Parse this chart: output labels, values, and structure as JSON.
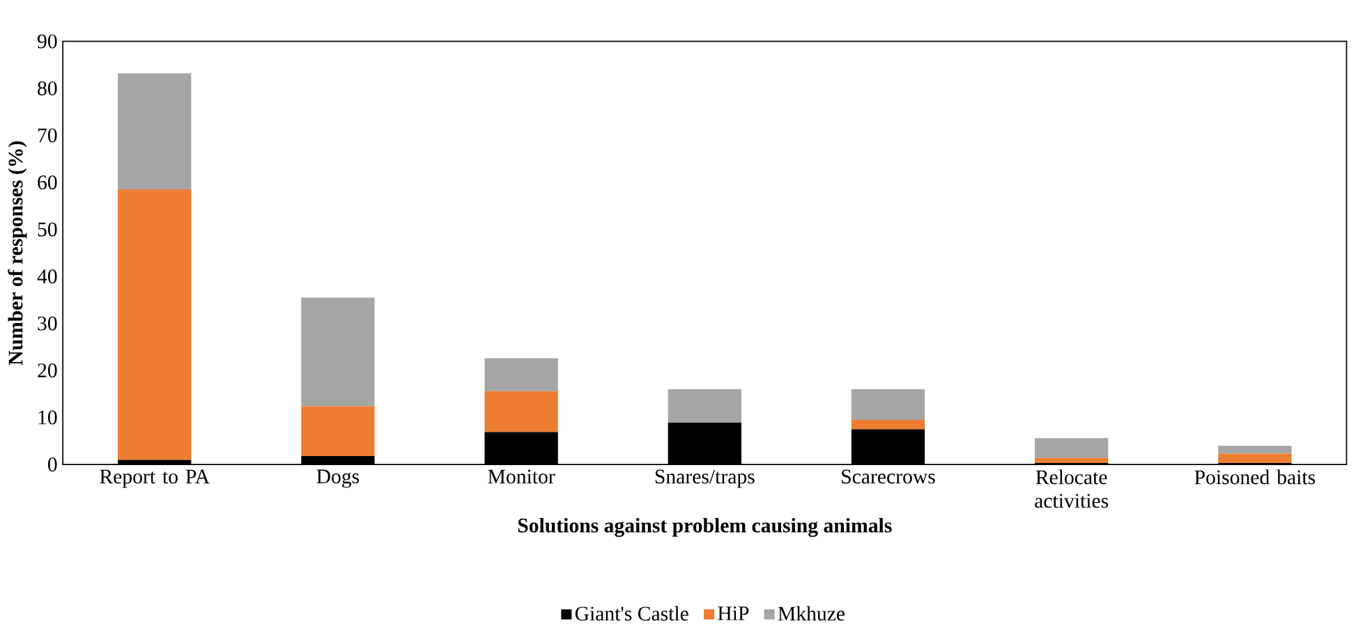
{
  "chart_data": {
    "type": "bar",
    "stacked": true,
    "xlabel": "Solutions against problem causing animals",
    "ylabel": "Number of responses (%)",
    "categories": [
      "Report to PA",
      "Dogs",
      "Monitor",
      "Snares/traps",
      "Scarecrows",
      "Relocate activities",
      "Poisoned baits"
    ],
    "series": [
      {
        "name": "Giant's Castle",
        "color": "#000000",
        "values": [
          1.0,
          1.8,
          6.9,
          8.9,
          7.5,
          0.3,
          0.3
        ]
      },
      {
        "name": "HiP",
        "color": "#ed7d31",
        "values": [
          57.5,
          10.6,
          8.7,
          0,
          2.0,
          1.1,
          2.0
        ]
      },
      {
        "name": "Mkhuze",
        "color": "#a5a5a5",
        "values": [
          24.7,
          23.1,
          7.0,
          7.1,
          6.5,
          4.2,
          1.7
        ]
      }
    ],
    "ylim": [
      0,
      90
    ],
    "yticks": [
      0,
      10,
      20,
      30,
      40,
      50,
      60,
      70,
      80,
      90
    ],
    "grid": false,
    "legend": "bottom"
  }
}
